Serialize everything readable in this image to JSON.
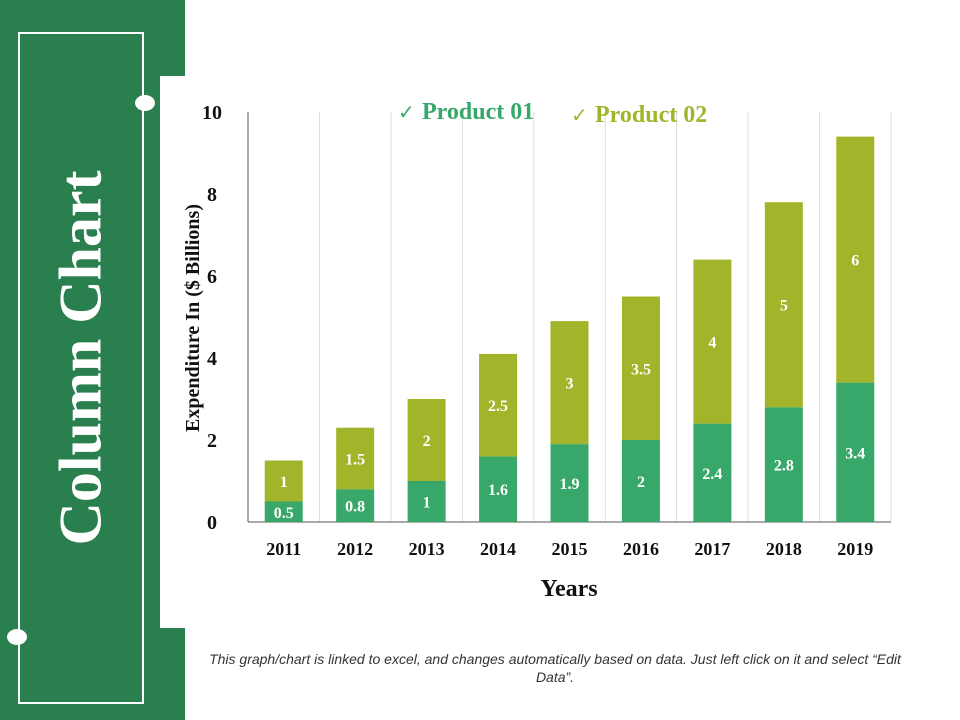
{
  "slide_title": "Column Chart",
  "footnote": "This graph/chart is linked to excel, and changes automatically based on data. Just left click on it and select “Edit Data”.",
  "colors": {
    "sidebar": "#2a7f4f",
    "product01": "#38a86a",
    "product02": "#a2b52a"
  },
  "chart_data": {
    "type": "bar",
    "stacked": true,
    "categories": [
      "2011",
      "2012",
      "2013",
      "2014",
      "2015",
      "2016",
      "2017",
      "2018",
      "2019"
    ],
    "series": [
      {
        "name": "Product 01",
        "values": [
          0.5,
          0.8,
          1,
          1.6,
          1.9,
          2,
          2.4,
          2.8,
          3.4
        ],
        "color": "#38a86a"
      },
      {
        "name": "Product 02",
        "values": [
          1,
          1.5,
          2,
          2.5,
          3,
          3.5,
          4,
          5,
          6
        ],
        "color": "#a2b52a"
      }
    ],
    "xlabel": "Years",
    "ylabel": "Expenditure In ($ Billions)",
    "ylim": [
      0,
      10
    ],
    "yticks": [
      0,
      2,
      4,
      6,
      8,
      10
    ],
    "grid": "vertical",
    "legend": "top"
  }
}
